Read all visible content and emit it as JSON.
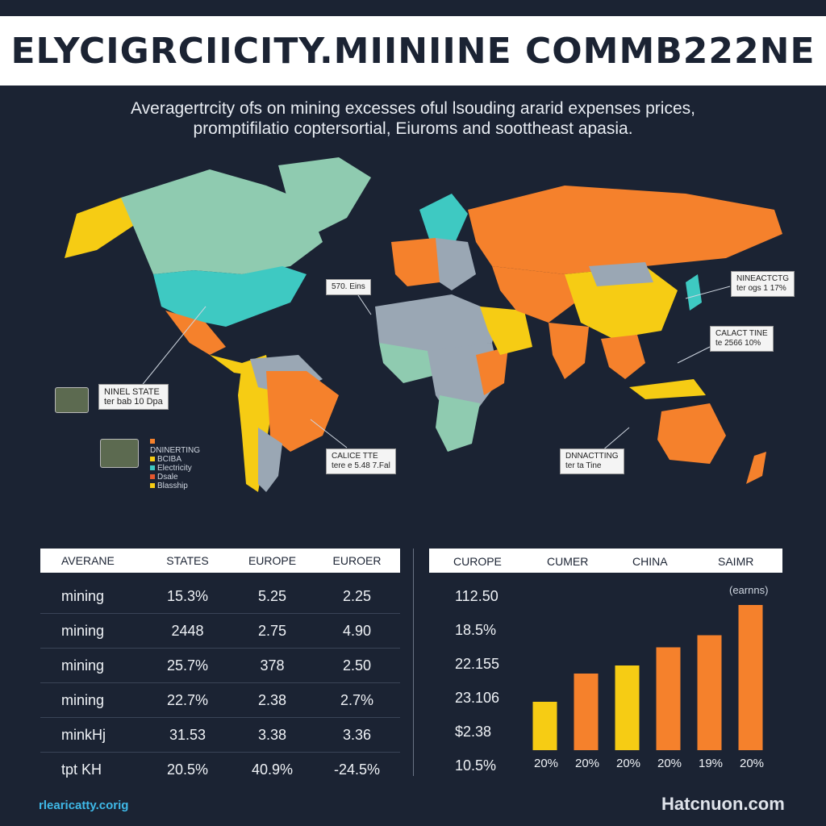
{
  "title": "ELYCIGRCIICITY.MIINIINE COMMB222NE",
  "subtitle_line1": "Averagertrcity ofs on mining excesses oful lsouding ararid expenses prices,",
  "subtitle_line2": "promptifilatio coptersortial, Eiuroms and soottheast apasia.",
  "colors": {
    "background": "#1b2333",
    "orange": "#f5812c",
    "yellow": "#f6cc14",
    "teal": "#3ec9c2",
    "mint": "#8fcbb0",
    "gray": "#9aa7b4",
    "land_red": "#e4572e"
  },
  "map": {
    "callouts": [
      {
        "line1": "570. Eins",
        "line2": ""
      },
      {
        "line1": "NINEL STATE",
        "line2": "ter bab 10 Dpa"
      },
      {
        "line1": "CALICE TTE",
        "line2": "tere e 5.48 7.Fal"
      },
      {
        "line1": "NINEACTCTG",
        "line2": "ter ogs 1 17%"
      },
      {
        "line1": "CALACT TINE",
        "line2": "te 2566 10%"
      },
      {
        "line1": "DNNACTTING",
        "line2": "ter ta Tine"
      }
    ],
    "legend": [
      {
        "label": "DNINERTING",
        "color": "#f5812c"
      },
      {
        "label": "BCIBA",
        "color": "#f6cc14"
      },
      {
        "label": "Electricity",
        "color": "#3ec9c2"
      },
      {
        "label": "Dsale",
        "color": "#e4572e"
      },
      {
        "label": "Blasship",
        "color": "#f6cc14"
      }
    ]
  },
  "chart_data": [
    {
      "type": "table",
      "columns": [
        "AVERANE",
        "STATES",
        "EUROPE",
        "EUROER"
      ],
      "rows": [
        [
          "mining",
          "15.3%",
          "5.25",
          "2.25"
        ],
        [
          "mining",
          "2448",
          "2.75",
          "4.90"
        ],
        [
          "mining",
          "25.7%",
          "378",
          "2.50"
        ],
        [
          "mining",
          "22.7%",
          "2.38",
          "2.7%"
        ],
        [
          "minkHj",
          "31.53",
          "3.38",
          "3.36"
        ],
        [
          "tpt KH",
          "20.5%",
          "40.9%",
          "-24.5%"
        ]
      ]
    },
    {
      "type": "bar",
      "header": [
        "CUROPE",
        "CUMER",
        "CHINA",
        "SAIMR"
      ],
      "left_values": [
        "112.50",
        "18.5%",
        "22.155",
        "23.106",
        "$2.38",
        "10.5%"
      ],
      "note": "(earnns)",
      "categories": [
        "20%",
        "20%",
        "20%",
        "20%",
        "19%",
        "20%"
      ],
      "values": [
        2.4,
        3.8,
        4.2,
        5.1,
        5.7,
        7.2
      ],
      "colors": [
        "#f6cc14",
        "#f5812c",
        "#f6cc14",
        "#f5812c",
        "#f5812c",
        "#f5812c"
      ],
      "ylim": [
        0,
        7.6
      ]
    }
  ],
  "footer": {
    "left": "rlearicatty.corig",
    "right": "Hatcnuon.com"
  }
}
